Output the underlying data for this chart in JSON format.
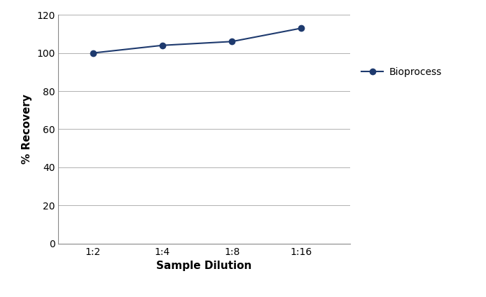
{
  "x_labels": [
    "1:2",
    "1:4",
    "1:8",
    "1:16"
  ],
  "x_positions": [
    1,
    2,
    3,
    4
  ],
  "y_values": [
    100,
    104,
    106,
    113
  ],
  "line_color": "#1e3a6e",
  "marker": "o",
  "marker_size": 6,
  "marker_facecolor": "#1e3a6e",
  "linewidth": 1.5,
  "ylabel": "% Recovery",
  "xlabel": "Sample Dilution",
  "ylim": [
    0,
    120
  ],
  "yticks": [
    0,
    20,
    40,
    60,
    80,
    100,
    120
  ],
  "xlim": [
    0.5,
    4.7
  ],
  "legend_label": "Bioprocess",
  "legend_fontsize": 10,
  "axis_label_fontsize": 11,
  "tick_fontsize": 10,
  "grid_color": "#b0b0b0",
  "grid_linewidth": 0.7,
  "background_color": "#ffffff"
}
